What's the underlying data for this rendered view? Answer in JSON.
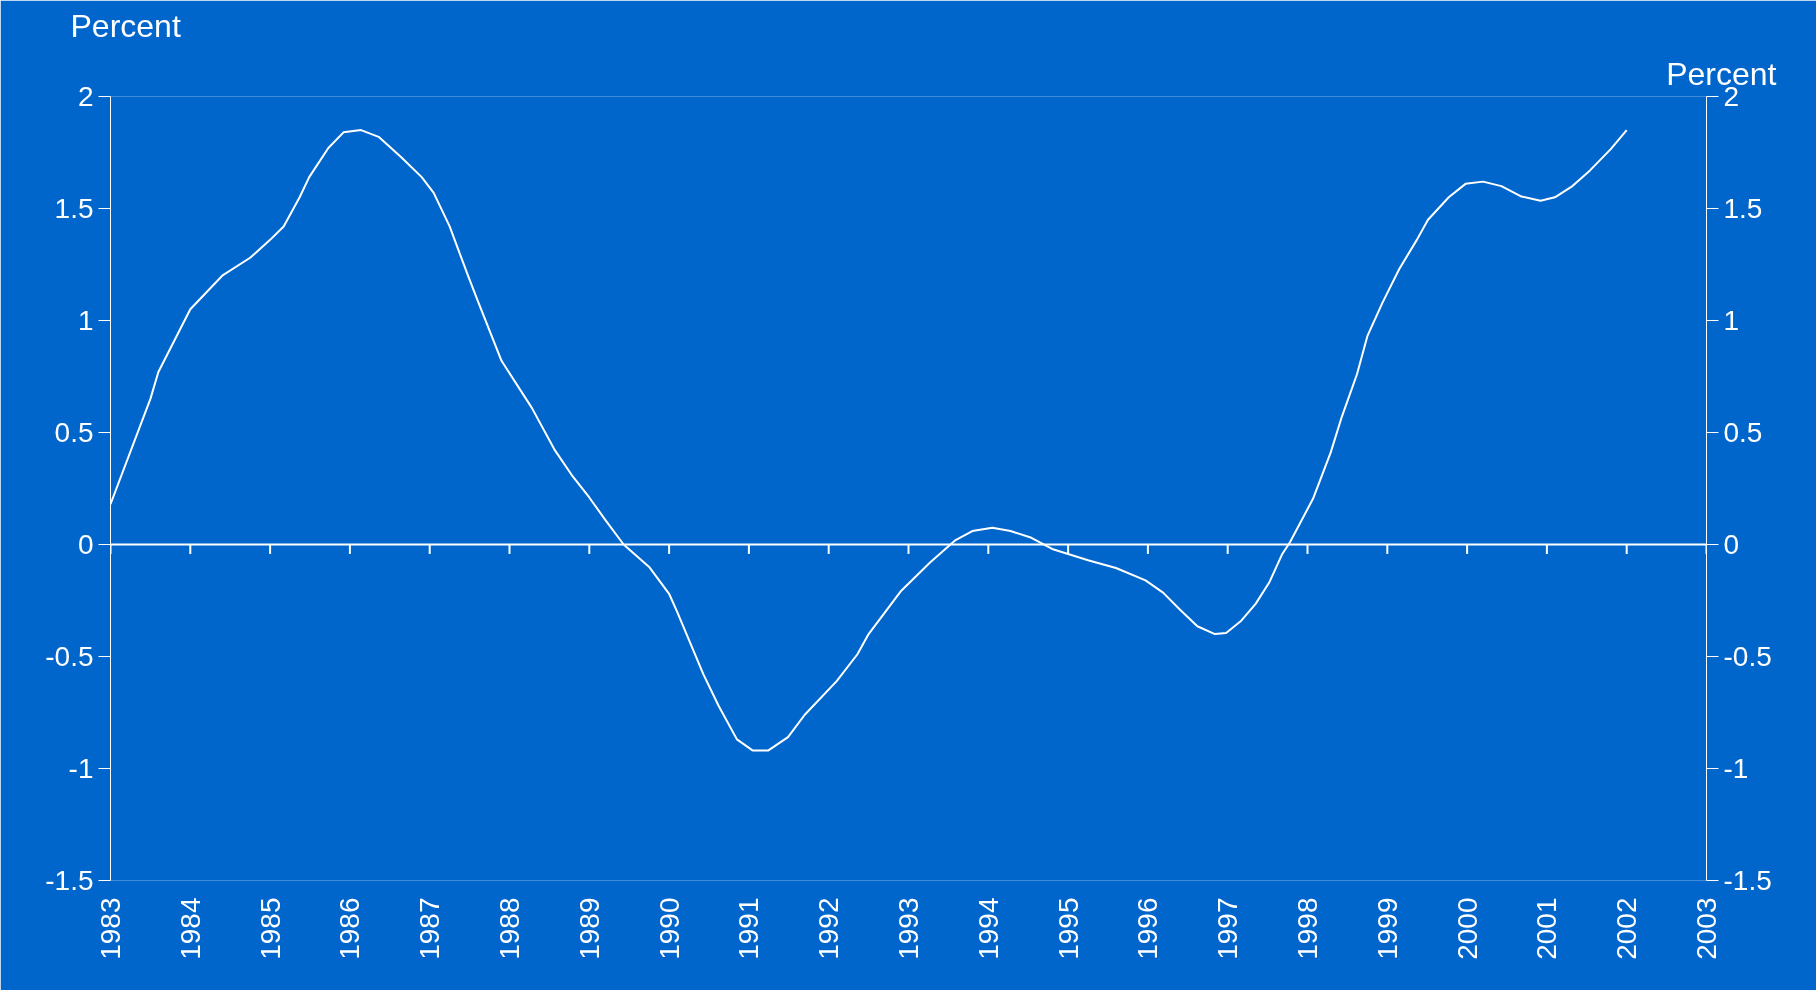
{
  "chart_data": {
    "type": "line",
    "ylabel": "Percent",
    "y2label": "Percent",
    "x": [
      1983.0,
      1983.5,
      1983.6,
      1984.0,
      1984.4,
      1984.75,
      1985.0,
      1985.17,
      1985.37,
      1985.49,
      1985.73,
      1985.92,
      1986.14,
      1986.36,
      1986.64,
      1986.9,
      1987.05,
      1987.25,
      1987.48,
      1987.6,
      1987.9,
      1988.28,
      1988.57,
      1988.78,
      1989.0,
      1989.2,
      1989.43,
      1989.75,
      1990.0,
      1990.1,
      1990.43,
      1990.62,
      1990.85,
      1991.05,
      1991.24,
      1991.49,
      1991.7,
      1992.1,
      1992.36,
      1992.5,
      1992.9,
      1993.27,
      1993.59,
      1993.8,
      1994.05,
      1994.28,
      1994.54,
      1994.8,
      1995.25,
      1995.6,
      1995.97,
      1996.19,
      1996.4,
      1996.62,
      1996.84,
      1996.98,
      1997.17,
      1997.35,
      1997.52,
      1997.68,
      1997.78,
      1998.07,
      1998.29,
      1998.43,
      1998.62,
      1998.75,
      1998.94,
      1999.15,
      1999.37,
      1999.51,
      1999.77,
      1999.98,
      2000.2,
      2000.43,
      2000.67,
      2000.92,
      2001.1,
      2001.32,
      2001.54,
      2001.8,
      2002.0
    ],
    "series": [
      {
        "color": "#ffffff",
        "values": [
          0.18,
          0.65,
          0.77,
          1.05,
          1.2,
          1.28,
          1.36,
          1.42,
          1.55,
          1.64,
          1.77,
          1.84,
          1.85,
          1.82,
          1.73,
          1.64,
          1.57,
          1.42,
          1.2,
          1.09,
          0.82,
          0.61,
          0.42,
          0.31,
          0.21,
          0.11,
          0.0,
          -0.1,
          -0.22,
          -0.3,
          -0.58,
          -0.72,
          -0.87,
          -0.92,
          -0.92,
          -0.86,
          -0.76,
          -0.61,
          -0.49,
          -0.4,
          -0.21,
          -0.08,
          0.02,
          0.06,
          0.075,
          0.06,
          0.03,
          -0.02,
          -0.07,
          -0.105,
          -0.16,
          -0.215,
          -0.29,
          -0.365,
          -0.4,
          -0.395,
          -0.34,
          -0.265,
          -0.17,
          -0.045,
          0.01,
          0.205,
          0.41,
          0.57,
          0.76,
          0.93,
          1.08,
          1.23,
          1.36,
          1.45,
          1.55,
          1.61,
          1.62,
          1.6,
          1.555,
          1.535,
          1.55,
          1.6,
          1.67,
          1.765,
          1.85
        ]
      }
    ],
    "xlim": [
      1983,
      2003
    ],
    "xticks": [
      1983,
      1984,
      1985,
      1986,
      1987,
      1988,
      1989,
      1990,
      1991,
      1992,
      1993,
      1994,
      1995,
      1996,
      1997,
      1998,
      1999,
      2000,
      2001,
      2002,
      2003
    ],
    "ylim": [
      -1.5,
      2
    ],
    "yticks": [
      -1.5,
      -1,
      -0.5,
      0,
      0.5,
      1,
      1.5,
      2
    ],
    "y2lim": [
      -1.5,
      2
    ],
    "y2ticks": [
      -1.5,
      -1,
      -0.5,
      0,
      0.5,
      1,
      1.5,
      2
    ],
    "ref_lines": [
      {
        "axis": "y",
        "value": 0,
        "color": "#ffffff"
      }
    ],
    "grid": false,
    "marker": "none",
    "line_style": "solid"
  }
}
